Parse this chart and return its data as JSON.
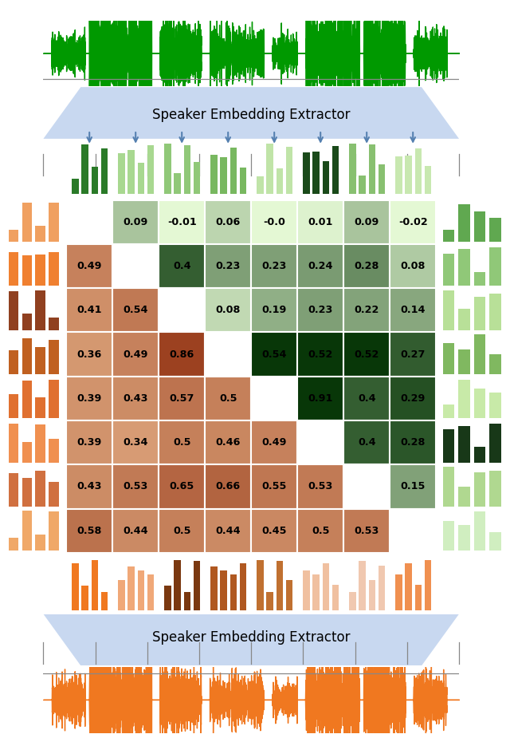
{
  "matrix": [
    [
      null,
      0.09,
      -0.01,
      0.06,
      0.0,
      0.01,
      0.09,
      -0.02
    ],
    [
      0.49,
      null,
      0.4,
      0.23,
      0.23,
      0.24,
      0.28,
      0.08
    ],
    [
      0.41,
      0.54,
      null,
      0.08,
      0.19,
      0.23,
      0.22,
      0.14
    ],
    [
      0.36,
      0.49,
      0.86,
      null,
      0.54,
      0.52,
      0.52,
      0.27
    ],
    [
      0.39,
      0.43,
      0.57,
      0.5,
      null,
      0.91,
      0.4,
      0.29
    ],
    [
      0.39,
      0.34,
      0.5,
      0.46,
      0.49,
      null,
      0.4,
      0.28
    ],
    [
      0.43,
      0.53,
      0.65,
      0.66,
      0.55,
      0.53,
      null,
      0.15
    ],
    [
      0.58,
      0.44,
      0.5,
      0.44,
      0.45,
      0.5,
      0.53,
      null
    ]
  ],
  "matrix_labels": [
    [
      null,
      "0.09",
      "-0.01",
      "0.06",
      "-0.0",
      "0.01",
      "0.09",
      "-0.02"
    ],
    [
      "0.49",
      null,
      "0.4",
      "0.23",
      "0.23",
      "0.24",
      "0.28",
      "0.08"
    ],
    [
      "0.41",
      "0.54",
      null,
      "0.08",
      "0.19",
      "0.23",
      "0.22",
      "0.14"
    ],
    [
      "0.36",
      "0.49",
      "0.86",
      null,
      "0.54",
      "0.52",
      "0.52",
      "0.27"
    ],
    [
      "0.39",
      "0.43",
      "0.57",
      "0.5",
      null,
      "0.91",
      "0.4",
      "0.29"
    ],
    [
      "0.39",
      "0.34",
      "0.5",
      "0.46",
      "0.49",
      null,
      "0.4",
      "0.28"
    ],
    [
      "0.43",
      "0.53",
      "0.65",
      "0.66",
      "0.55",
      "0.53",
      null,
      "0.15"
    ],
    [
      "0.58",
      "0.44",
      "0.5",
      "0.44",
      "0.45",
      "0.5",
      "0.53",
      null
    ]
  ],
  "n": 8,
  "waveform_green": "#009900",
  "waveform_orange": "#F07820",
  "speaker_box_color": "#C8D8F0",
  "speaker_text": "Speaker Embedding Extractor",
  "arrow_color": "#5580B0",
  "green_shades_top": [
    "#2A7A28",
    "#A8D890",
    "#90C878",
    "#78B860",
    "#C0E4A8",
    "#1A4A1A",
    "#88C070",
    "#C8E8B0"
  ],
  "orange_shades_left": [
    "#F0A060",
    "#F08030",
    "#904020",
    "#C06020",
    "#E07030",
    "#F09050",
    "#D07040",
    "#F0A868"
  ],
  "green_shades_right": [
    "#60A850",
    "#90C878",
    "#B8E098",
    "#80B860",
    "#C8EAA8",
    "#183818",
    "#B0D890",
    "#D0EEC0"
  ],
  "orange_shades_bot": [
    "#F07820",
    "#F0A878",
    "#7A3810",
    "#B05820",
    "#C07030",
    "#F0C0A0",
    "#F0C8B0",
    "#F09050"
  ]
}
